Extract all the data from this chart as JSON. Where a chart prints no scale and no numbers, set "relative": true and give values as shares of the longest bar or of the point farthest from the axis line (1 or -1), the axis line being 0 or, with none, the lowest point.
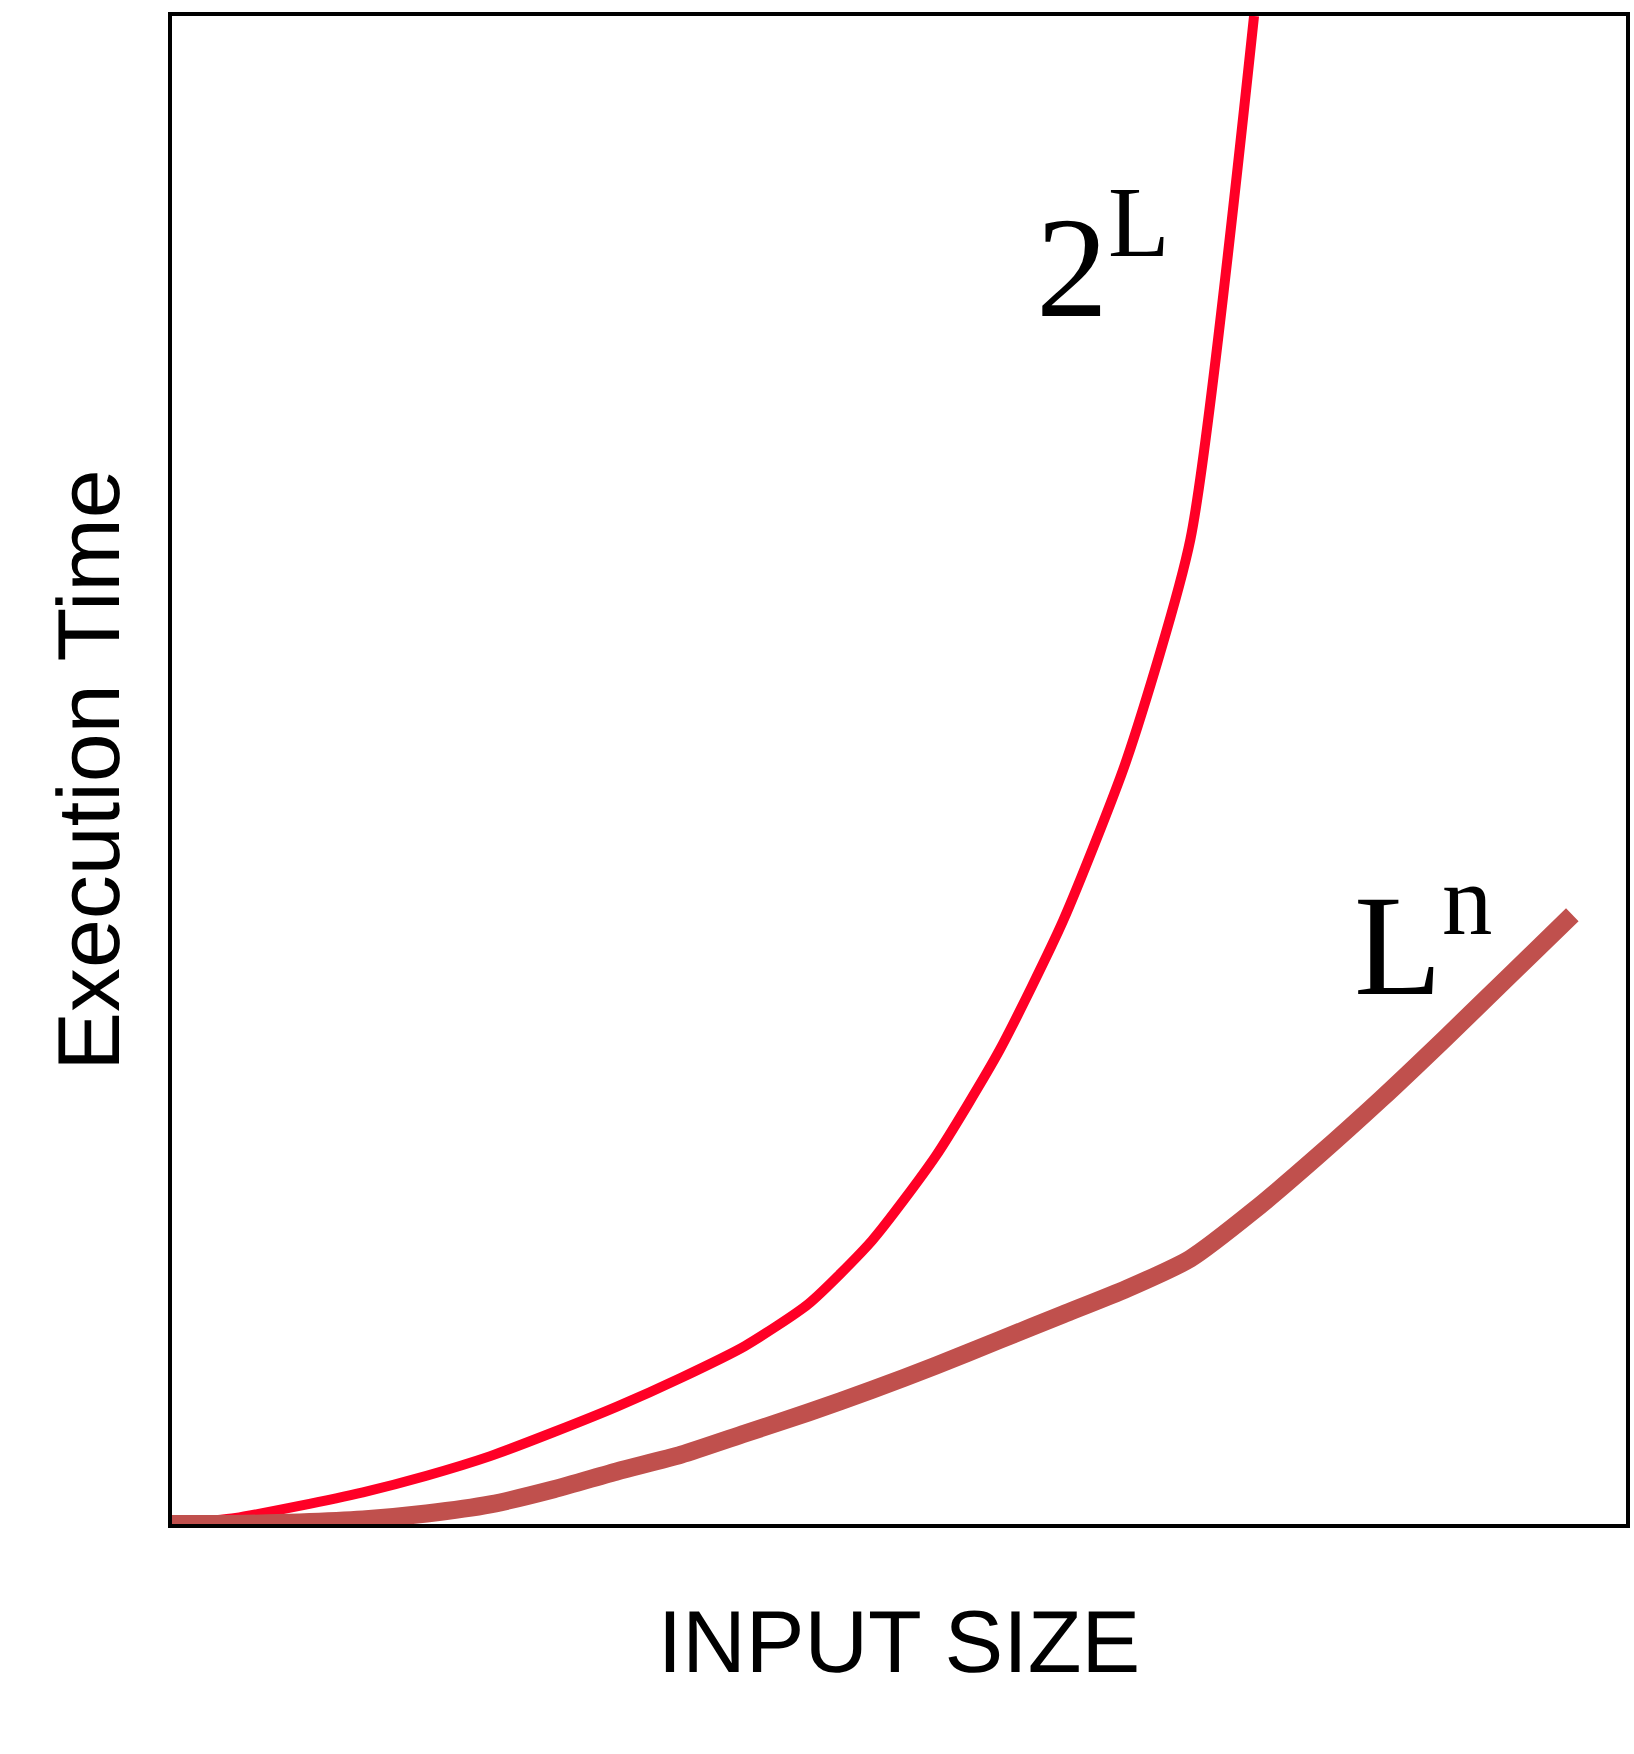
{
  "chart_data": {
    "type": "line",
    "relative": true,
    "xlabel": "INPUT SIZE",
    "ylabel": "Execution Time",
    "legend": false,
    "marker": "none",
    "line_style": "solid",
    "categories": [
      null,
      null,
      null,
      null,
      null,
      null,
      null,
      null,
      null,
      null,
      null,
      null,
      null,
      null,
      null,
      null,
      null,
      null,
      null,
      null,
      null,
      null,
      null
    ],
    "series": [
      {
        "name": "2$^{L}$",
        "color": "#ff0026",
        "values": [
          0,
          0.004,
          0.012,
          0.021,
          0.032,
          0.045,
          0.061,
          0.078,
          0.097,
          0.118,
          0.146,
          0.188,
          0.244,
          0.314,
          0.4,
          0.507,
          0.653,
          1,
          null,
          null,
          null,
          null,
          null
        ]
      },
      {
        "name": "L$^{n}$",
        "color": "#c0504d",
        "values": [
          0,
          0,
          0.001,
          0.003,
          0.007,
          0.013,
          0.023,
          0.035,
          0.046,
          0.06,
          0.074,
          0.089,
          0.105,
          0.122,
          0.139,
          0.156,
          0.176,
          0.208,
          0.244,
          0.282,
          0.322,
          0.363,
          0.404
        ]
      }
    ]
  }
}
